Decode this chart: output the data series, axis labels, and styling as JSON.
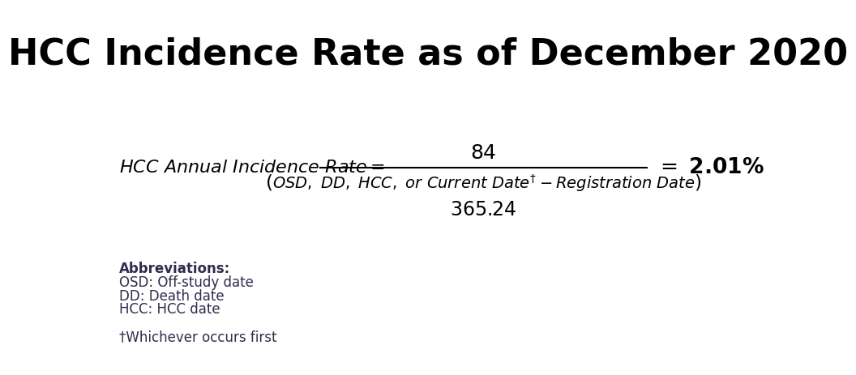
{
  "title": "HCC Incidence Rate as of December 2020",
  "title_fontsize": 32,
  "title_fontweight": "bold",
  "background_color": "#ffffff",
  "abbrev_title": "Abbreviations:",
  "abbrev_lines": [
    "OSD: Off-study date",
    "DD: Death date",
    "HCC: HCC date"
  ],
  "footnote": "†Whichever occurs first",
  "text_color": "#1a1a2e",
  "abbrev_color": "#2d2d4e"
}
